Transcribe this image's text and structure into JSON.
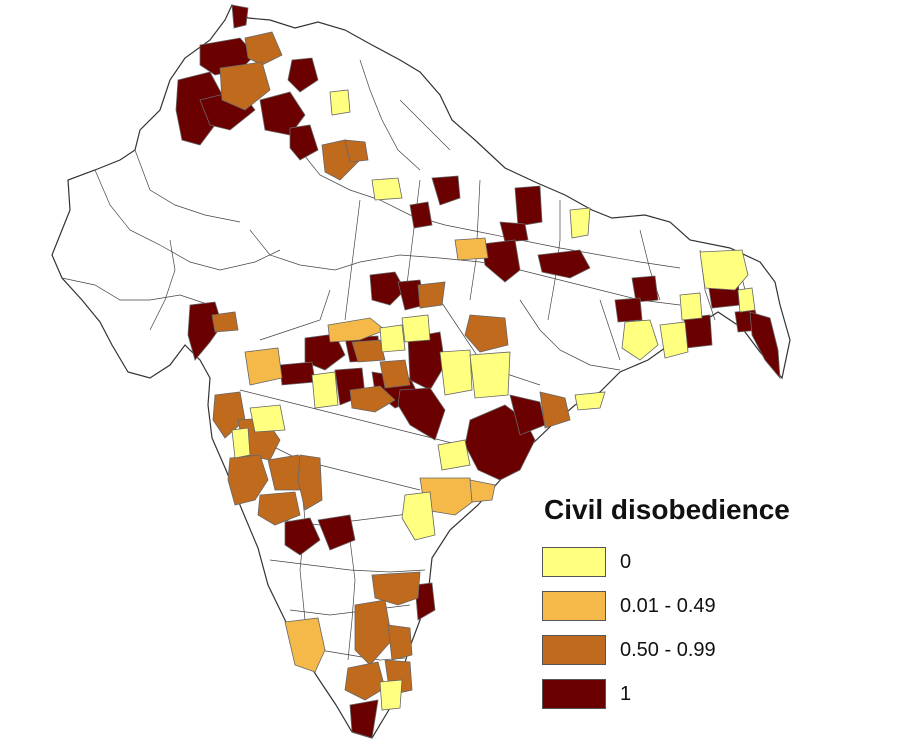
{
  "legend": {
    "title": "Civil disobedience",
    "classes": [
      {
        "label": "0",
        "color": "#ffff80"
      },
      {
        "label": "0.01 - 0.49",
        "color": "#f5b94a"
      },
      {
        "label": "0.50 - 0.99",
        "color": "#c06a1e"
      },
      {
        "label": "1",
        "color": "#6b0000"
      }
    ]
  },
  "colors": {
    "no_data": "#ffffff",
    "boundary": "#333333"
  }
}
